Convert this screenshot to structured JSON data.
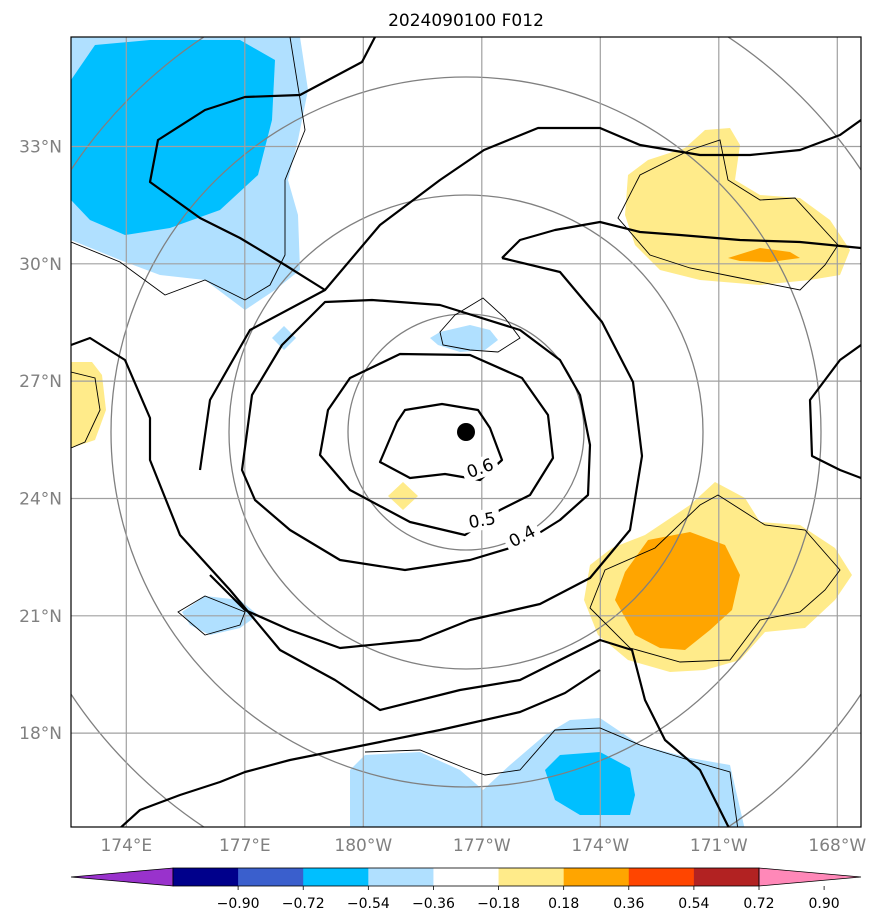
{
  "chart_data": {
    "type": "map-contour",
    "title": "2024090100 F012",
    "lat_ticks": [
      "33°N",
      "30°N",
      "27°N",
      "24°N",
      "21°N",
      "18°N"
    ],
    "lon_ticks": [
      "174°E",
      "177°E",
      "180°W",
      "177°W",
      "174°W",
      "171°W",
      "168°W"
    ],
    "lat_range": [
      15.6,
      35.8
    ],
    "lon_range": [
      172.6,
      192.6
    ],
    "grid": true,
    "center_marker": {
      "lat": 25.6,
      "lon": 182.8
    },
    "contour_labels": [
      "0.6",
      "0.5",
      "0.4"
    ],
    "colorbar": {
      "ticks": [
        "−0.90",
        "−0.72",
        "−0.54",
        "−0.36",
        "−0.18",
        "0.18",
        "0.36",
        "0.54",
        "0.72",
        "0.90"
      ],
      "colors": [
        "#9932cc",
        "#00008b",
        "#3a5fcd",
        "#00bfff",
        "#b0e0ff",
        "#ffffff",
        "#ffeb8a",
        "#ffa500",
        "#ff4500",
        "#b22222",
        "#ff88b8"
      ],
      "extend": "both"
    }
  }
}
